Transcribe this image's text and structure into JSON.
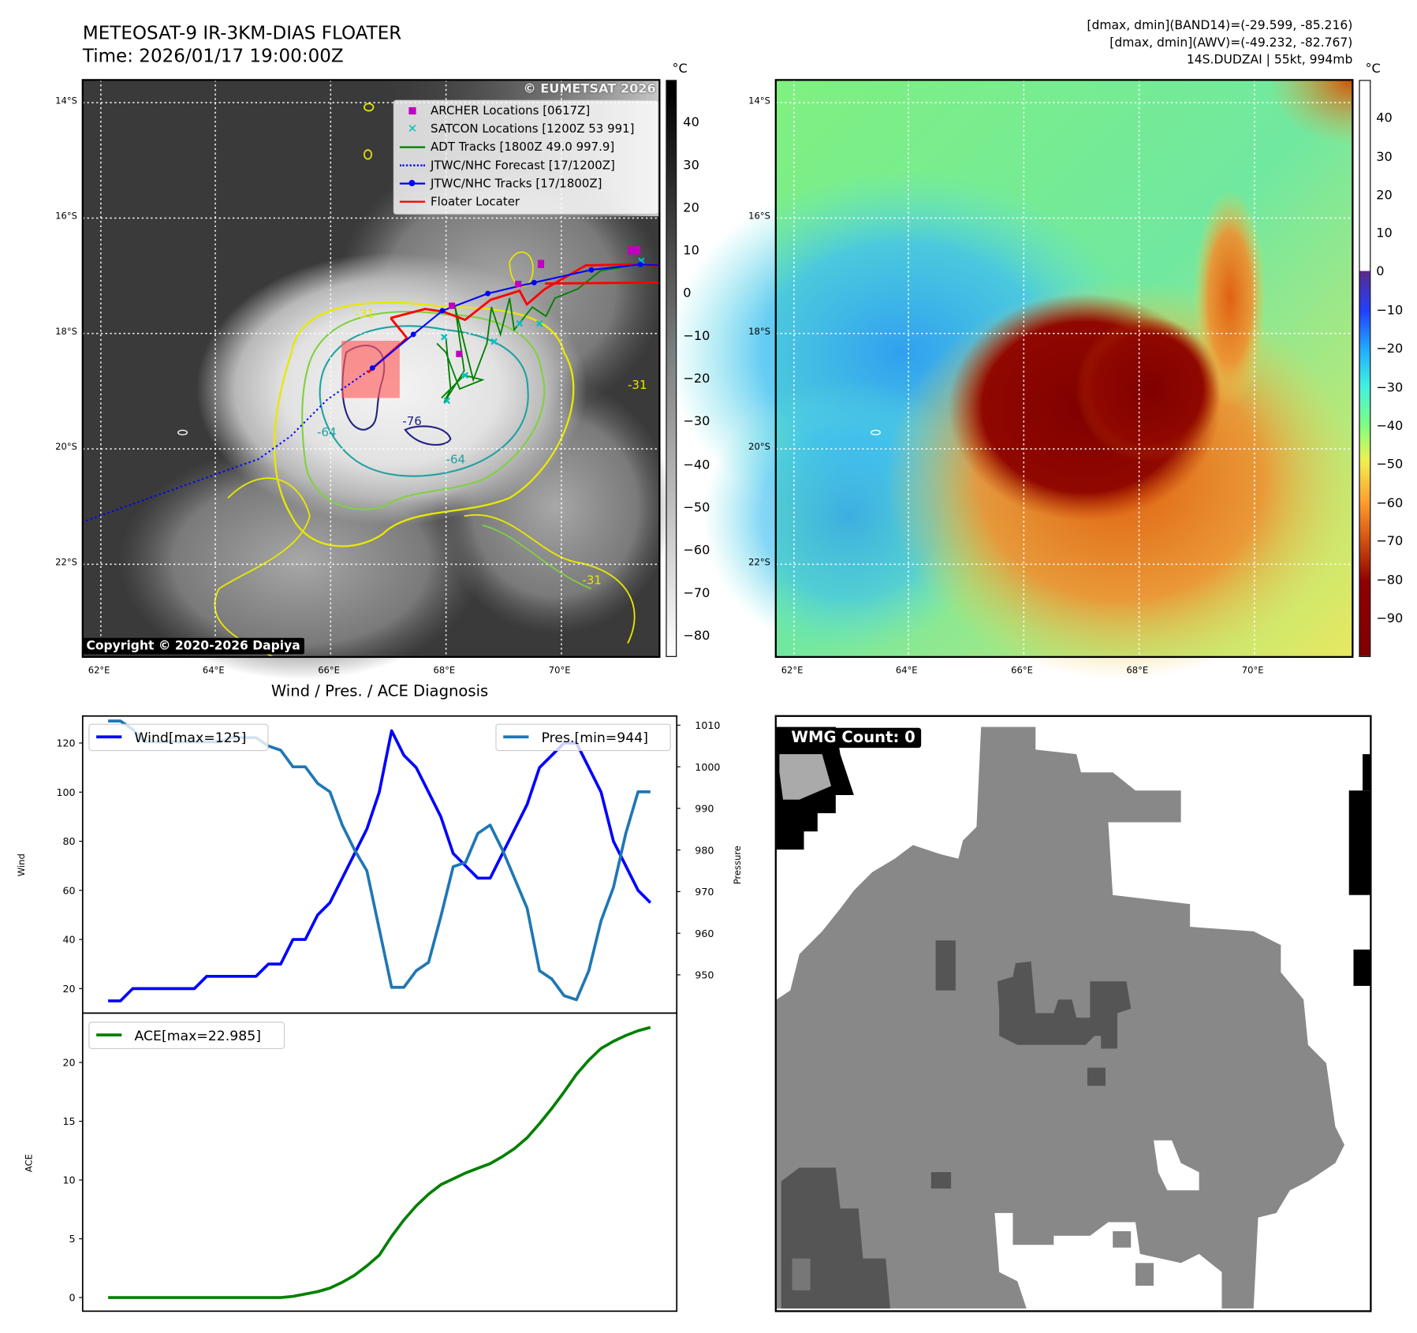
{
  "left_panel": {
    "title_line1": "METEOSAT-9 IR-3KM-DIAS FLOATER",
    "title_line2": "Time: 2026/01/17 19:00:00Z",
    "colorbar_unit": "°C",
    "colorbar_ticks": [
      "40",
      "30",
      "20",
      "10",
      "0",
      "−10",
      "−20",
      "−30",
      "−40",
      "−50",
      "−60",
      "−70",
      "−80"
    ],
    "lat_labels": [
      "14°S",
      "16°S",
      "18°S",
      "20°S",
      "22°S"
    ],
    "lon_labels": [
      "62°E",
      "64°E",
      "66°E",
      "68°E",
      "70°E"
    ],
    "watermark": "© EUMETSAT 2026",
    "copyright": "Copyright © 2020-2026 Dapiya",
    "contour_labels": [
      "-31",
      "-76",
      "-64",
      "-64",
      "-31",
      "-31"
    ],
    "legend": [
      {
        "label": "ARCHER Locations [0617Z]",
        "color": "#c000c0",
        "symbol": "square"
      },
      {
        "label": "SATCON Locations [1200Z 53 991]",
        "color": "#00c0c0",
        "symbol": "x"
      },
      {
        "label": "ADT Tracks [1800Z 49.0 997.9]",
        "color": "#008000",
        "symbol": "line"
      },
      {
        "label": "JTWC/NHC Forecast [17/1200Z]",
        "color": "#0000ff",
        "symbol": "dotted"
      },
      {
        "label": "JTWC/NHC Tracks [17/1800Z]",
        "color": "#0000ff",
        "symbol": "line-dot"
      },
      {
        "label": "Floater Locater",
        "color": "#ff0000",
        "symbol": "line"
      }
    ]
  },
  "right_panel": {
    "info_line1": "[dmax, dmin](BAND14)=(-29.599, -85.216)",
    "info_line2": "[dmax, dmin](AWV)=(-49.232, -82.767)",
    "info_line3": "14S.DUDZAI | 55kt, 994mb",
    "colorbar_unit": "°C",
    "colorbar_ticks": [
      "40",
      "30",
      "20",
      "10",
      "0",
      "−10",
      "−20",
      "−30",
      "−40",
      "−50",
      "−60",
      "−70",
      "−80",
      "−90"
    ],
    "lat_labels": [
      "14°S",
      "16°S",
      "18°S",
      "20°S",
      "22°S"
    ],
    "lon_labels": [
      "62°E",
      "64°E",
      "66°E",
      "68°E",
      "70°E"
    ]
  },
  "wmg_panel": {
    "label": "WMG Count: 0"
  },
  "chart_data": [
    {
      "type": "line",
      "title": "Wind / Pres. / ACE Diagnosis",
      "ylabel": "Wind",
      "ylabel_right": "Pressure",
      "ylim": [
        10,
        131
      ],
      "ylim_right": [
        940.8,
        1012.2
      ],
      "yticks": [
        20,
        40,
        60,
        80,
        100,
        120
      ],
      "yticks_right": [
        950,
        960,
        970,
        980,
        990,
        1000,
        1010
      ],
      "series": [
        {
          "name": "Wind[max=125]",
          "color": "#0000ff",
          "axis": "left",
          "values": [
            15,
            15,
            20,
            20,
            20,
            20,
            20,
            20,
            25,
            25,
            25,
            25,
            25,
            30,
            30,
            40,
            40,
            50,
            55,
            65,
            75,
            85,
            100,
            125,
            115,
            110,
            100,
            90,
            75,
            70,
            65,
            65,
            75,
            85,
            95,
            110,
            115,
            120,
            120,
            110,
            100,
            80,
            70,
            60,
            55
          ]
        },
        {
          "name": "Pres.[min=944]",
          "color": "#1f77b4",
          "axis": "right",
          "values": [
            1011,
            1011,
            1009,
            1006,
            1006,
            1006,
            1006,
            1006,
            1006,
            1006,
            1007,
            1007,
            1007,
            1005,
            1004,
            1000,
            1000,
            996,
            994,
            986,
            980,
            975,
            961,
            947,
            947,
            951,
            953,
            964,
            976,
            977,
            984,
            986,
            980,
            973,
            966,
            951,
            949,
            945,
            944,
            951,
            963,
            971,
            984,
            994,
            994
          ]
        }
      ]
    },
    {
      "type": "line",
      "ylabel": "ACE",
      "ylim": [
        -1.16,
        24.2
      ],
      "yticks": [
        0,
        5,
        10,
        15,
        20
      ],
      "series": [
        {
          "name": "ACE[max=22.985]",
          "color": "#008000",
          "values": [
            0,
            0,
            0,
            0,
            0,
            0,
            0,
            0,
            0,
            0,
            0,
            0,
            0,
            0,
            0,
            0.1,
            0.3,
            0.5,
            0.8,
            1.3,
            1.9,
            2.7,
            3.6,
            5.2,
            6.6,
            7.8,
            8.8,
            9.6,
            10.1,
            10.6,
            11.0,
            11.4,
            12.0,
            12.7,
            13.6,
            14.8,
            16.1,
            17.5,
            19.0,
            20.2,
            21.2,
            21.8,
            22.3,
            22.7,
            22.985
          ]
        }
      ]
    }
  ]
}
